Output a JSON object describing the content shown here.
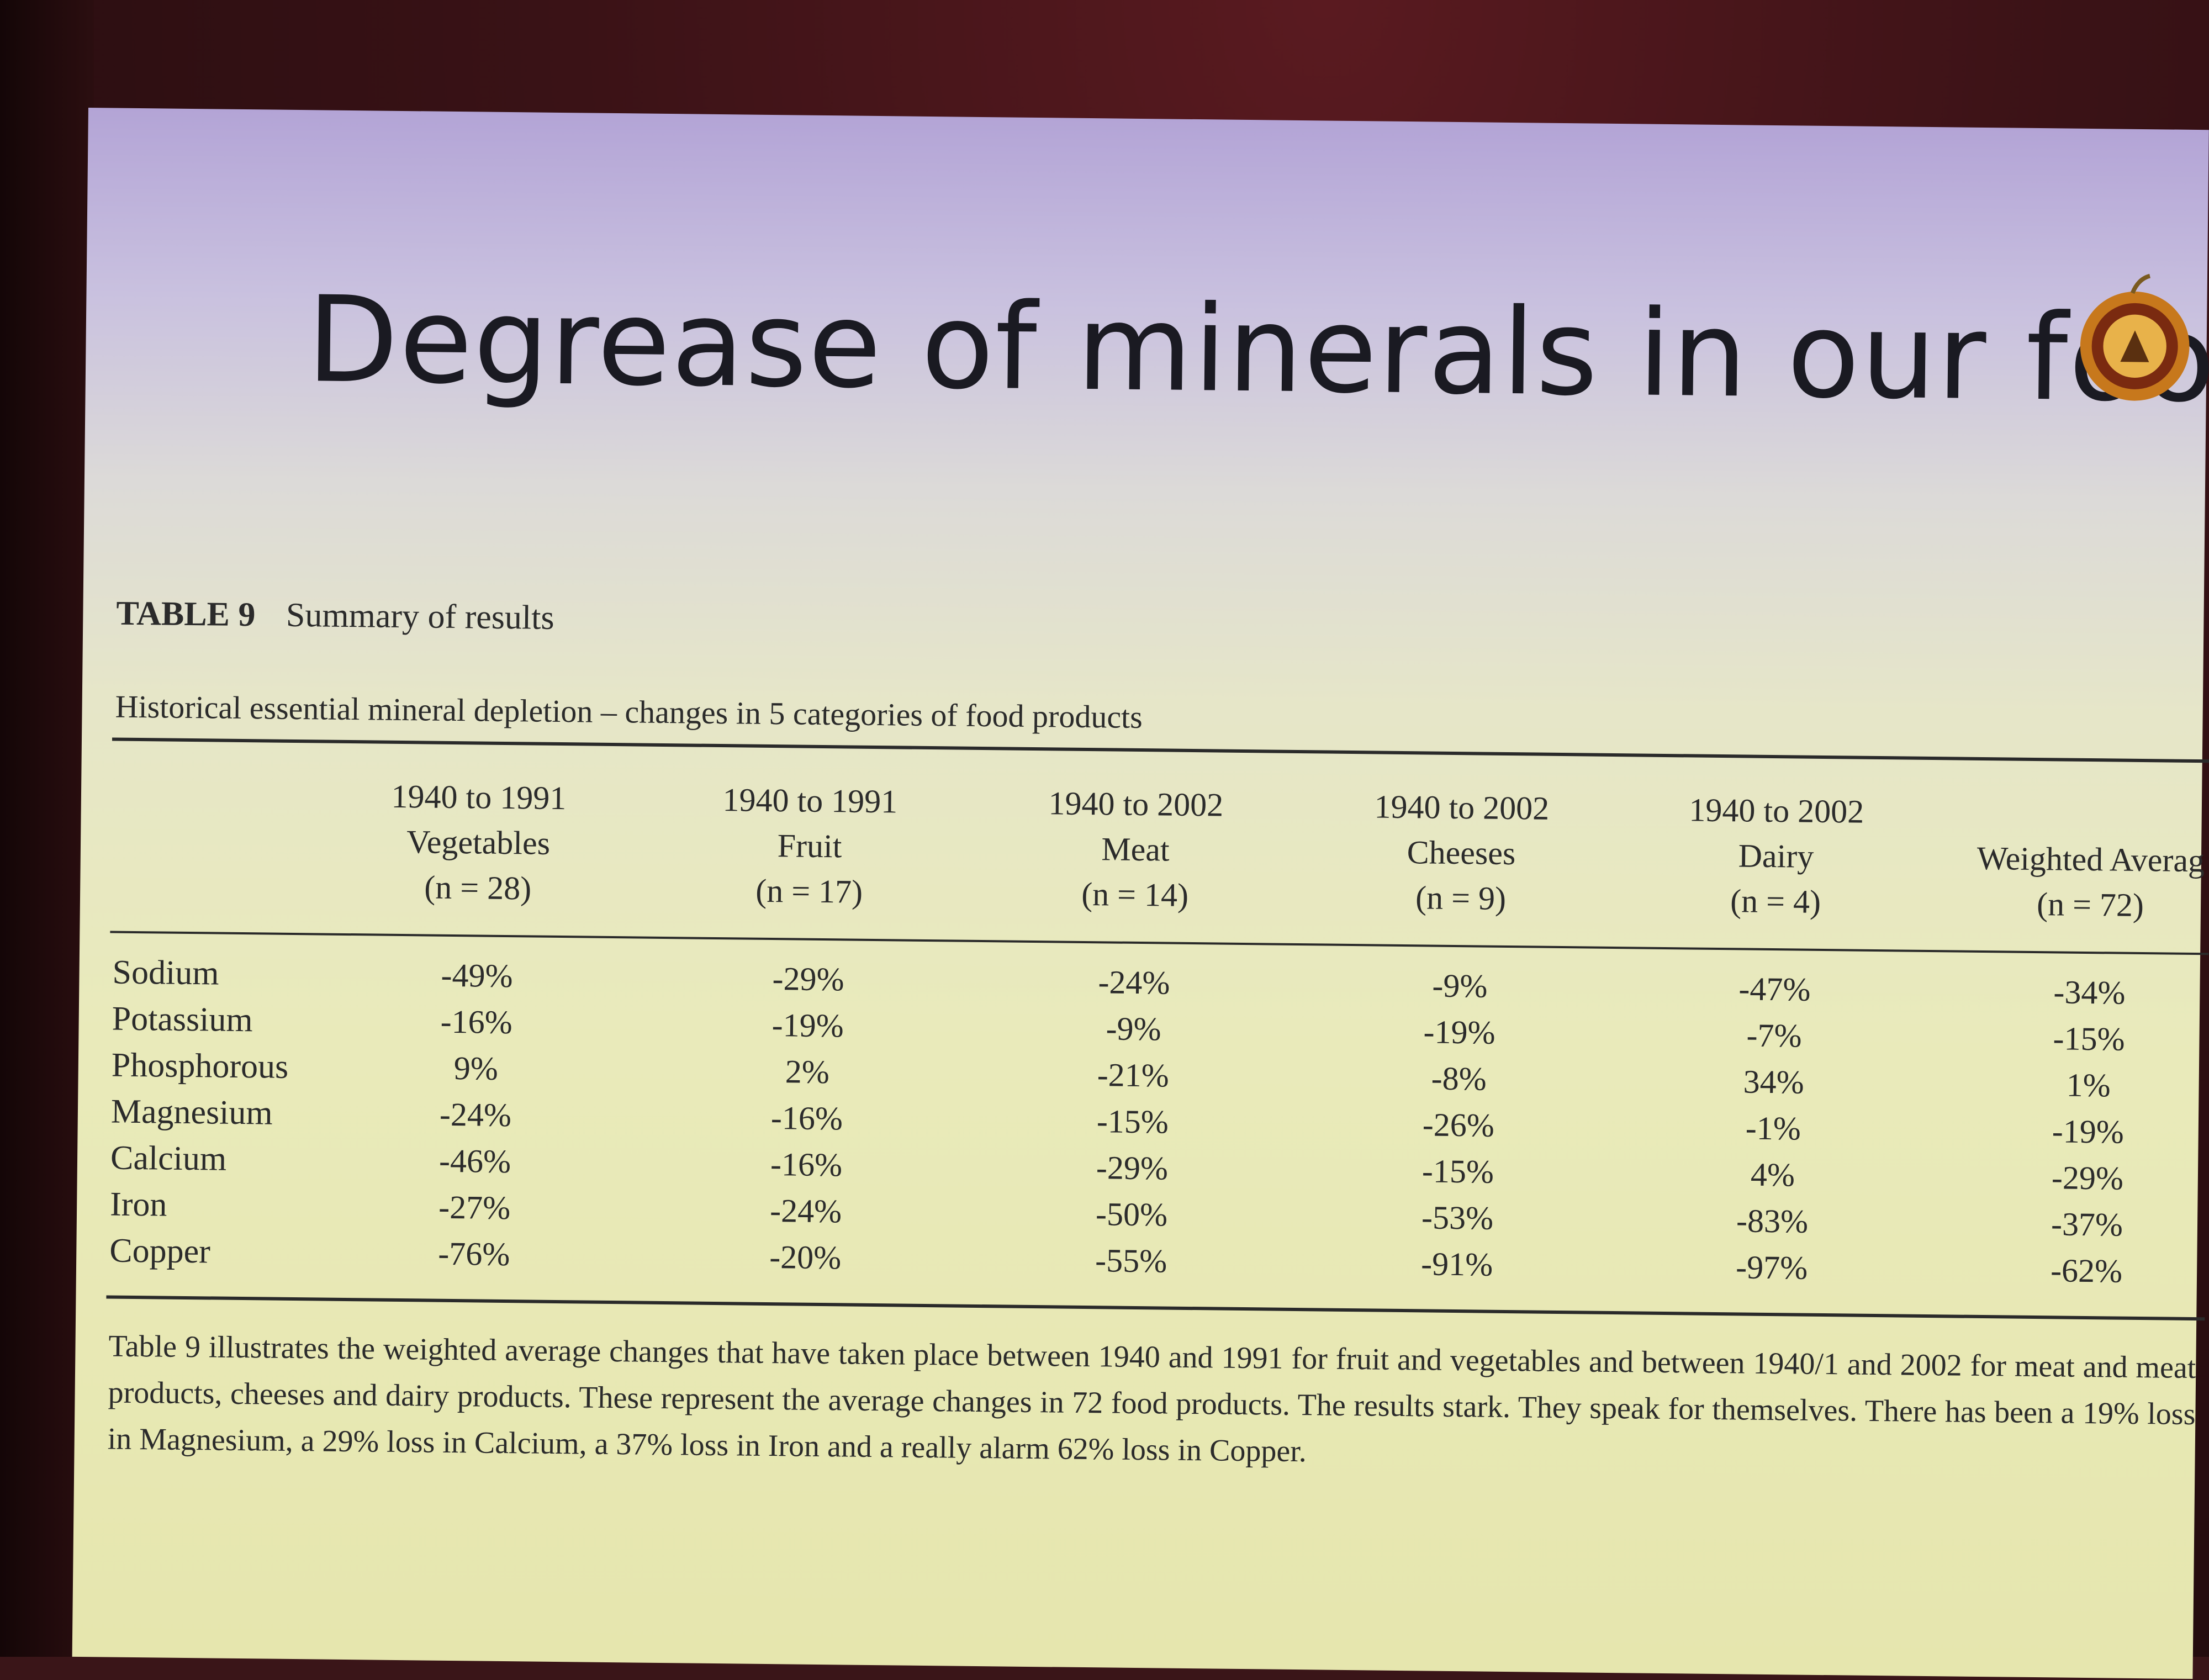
{
  "slide": {
    "title": "Degrease of minerals in our food",
    "logo_icon": "fruit-logo-icon"
  },
  "table": {
    "label_number": "TABLE 9",
    "label_title": "Summary of results",
    "caption": "Historical essential mineral depletion – changes in 5 categories of food products",
    "columns": [
      {
        "period": "1940 to 1991",
        "category": "Vegetables",
        "n": "(n = 28)"
      },
      {
        "period": "1940 to 1991",
        "category": "Fruit",
        "n": "(n = 17)"
      },
      {
        "period": "1940 to 2002",
        "category": "Meat",
        "n": "(n = 14)"
      },
      {
        "period": "1940 to 2002",
        "category": "Cheeses",
        "n": "(n = 9)"
      },
      {
        "period": "1940 to 2002",
        "category": "Dairy",
        "n": "(n = 4)"
      },
      {
        "period": "",
        "category": "Weighted Averag",
        "n": "(n = 72)"
      }
    ],
    "rows": [
      {
        "mineral": "Sodium",
        "values": [
          "-49%",
          "-29%",
          "-24%",
          "-9%",
          "-47%",
          "-34%"
        ]
      },
      {
        "mineral": "Potassium",
        "values": [
          "-16%",
          "-19%",
          "-9%",
          "-19%",
          "-7%",
          "-15%"
        ]
      },
      {
        "mineral": "Phosphorous",
        "values": [
          "9%",
          "2%",
          "-21%",
          "-8%",
          "34%",
          "1%"
        ]
      },
      {
        "mineral": "Magnesium",
        "values": [
          "-24%",
          "-16%",
          "-15%",
          "-26%",
          "-1%",
          "-19%"
        ]
      },
      {
        "mineral": "Calcium",
        "values": [
          "-46%",
          "-16%",
          "-29%",
          "-15%",
          "4%",
          "-29%"
        ]
      },
      {
        "mineral": "Iron",
        "values": [
          "-27%",
          "-24%",
          "-50%",
          "-53%",
          "-83%",
          "-37%"
        ]
      },
      {
        "mineral": "Copper",
        "values": [
          "-76%",
          "-20%",
          "-55%",
          "-91%",
          "-97%",
          "-62%"
        ]
      }
    ],
    "note": "Table 9 illustrates the weighted average changes that have taken place between 1940 and 1991 for fruit and vegetables and between 1940/1 and 2002 for meat and meat products, cheeses and dairy products. These represent the average changes in 72 food products. The results stark. They speak for themselves. There has been a 19% loss in Magnesium, a 29% loss in Calcium, a 37% loss in Iron and a really alarm 62% loss in Copper."
  }
}
